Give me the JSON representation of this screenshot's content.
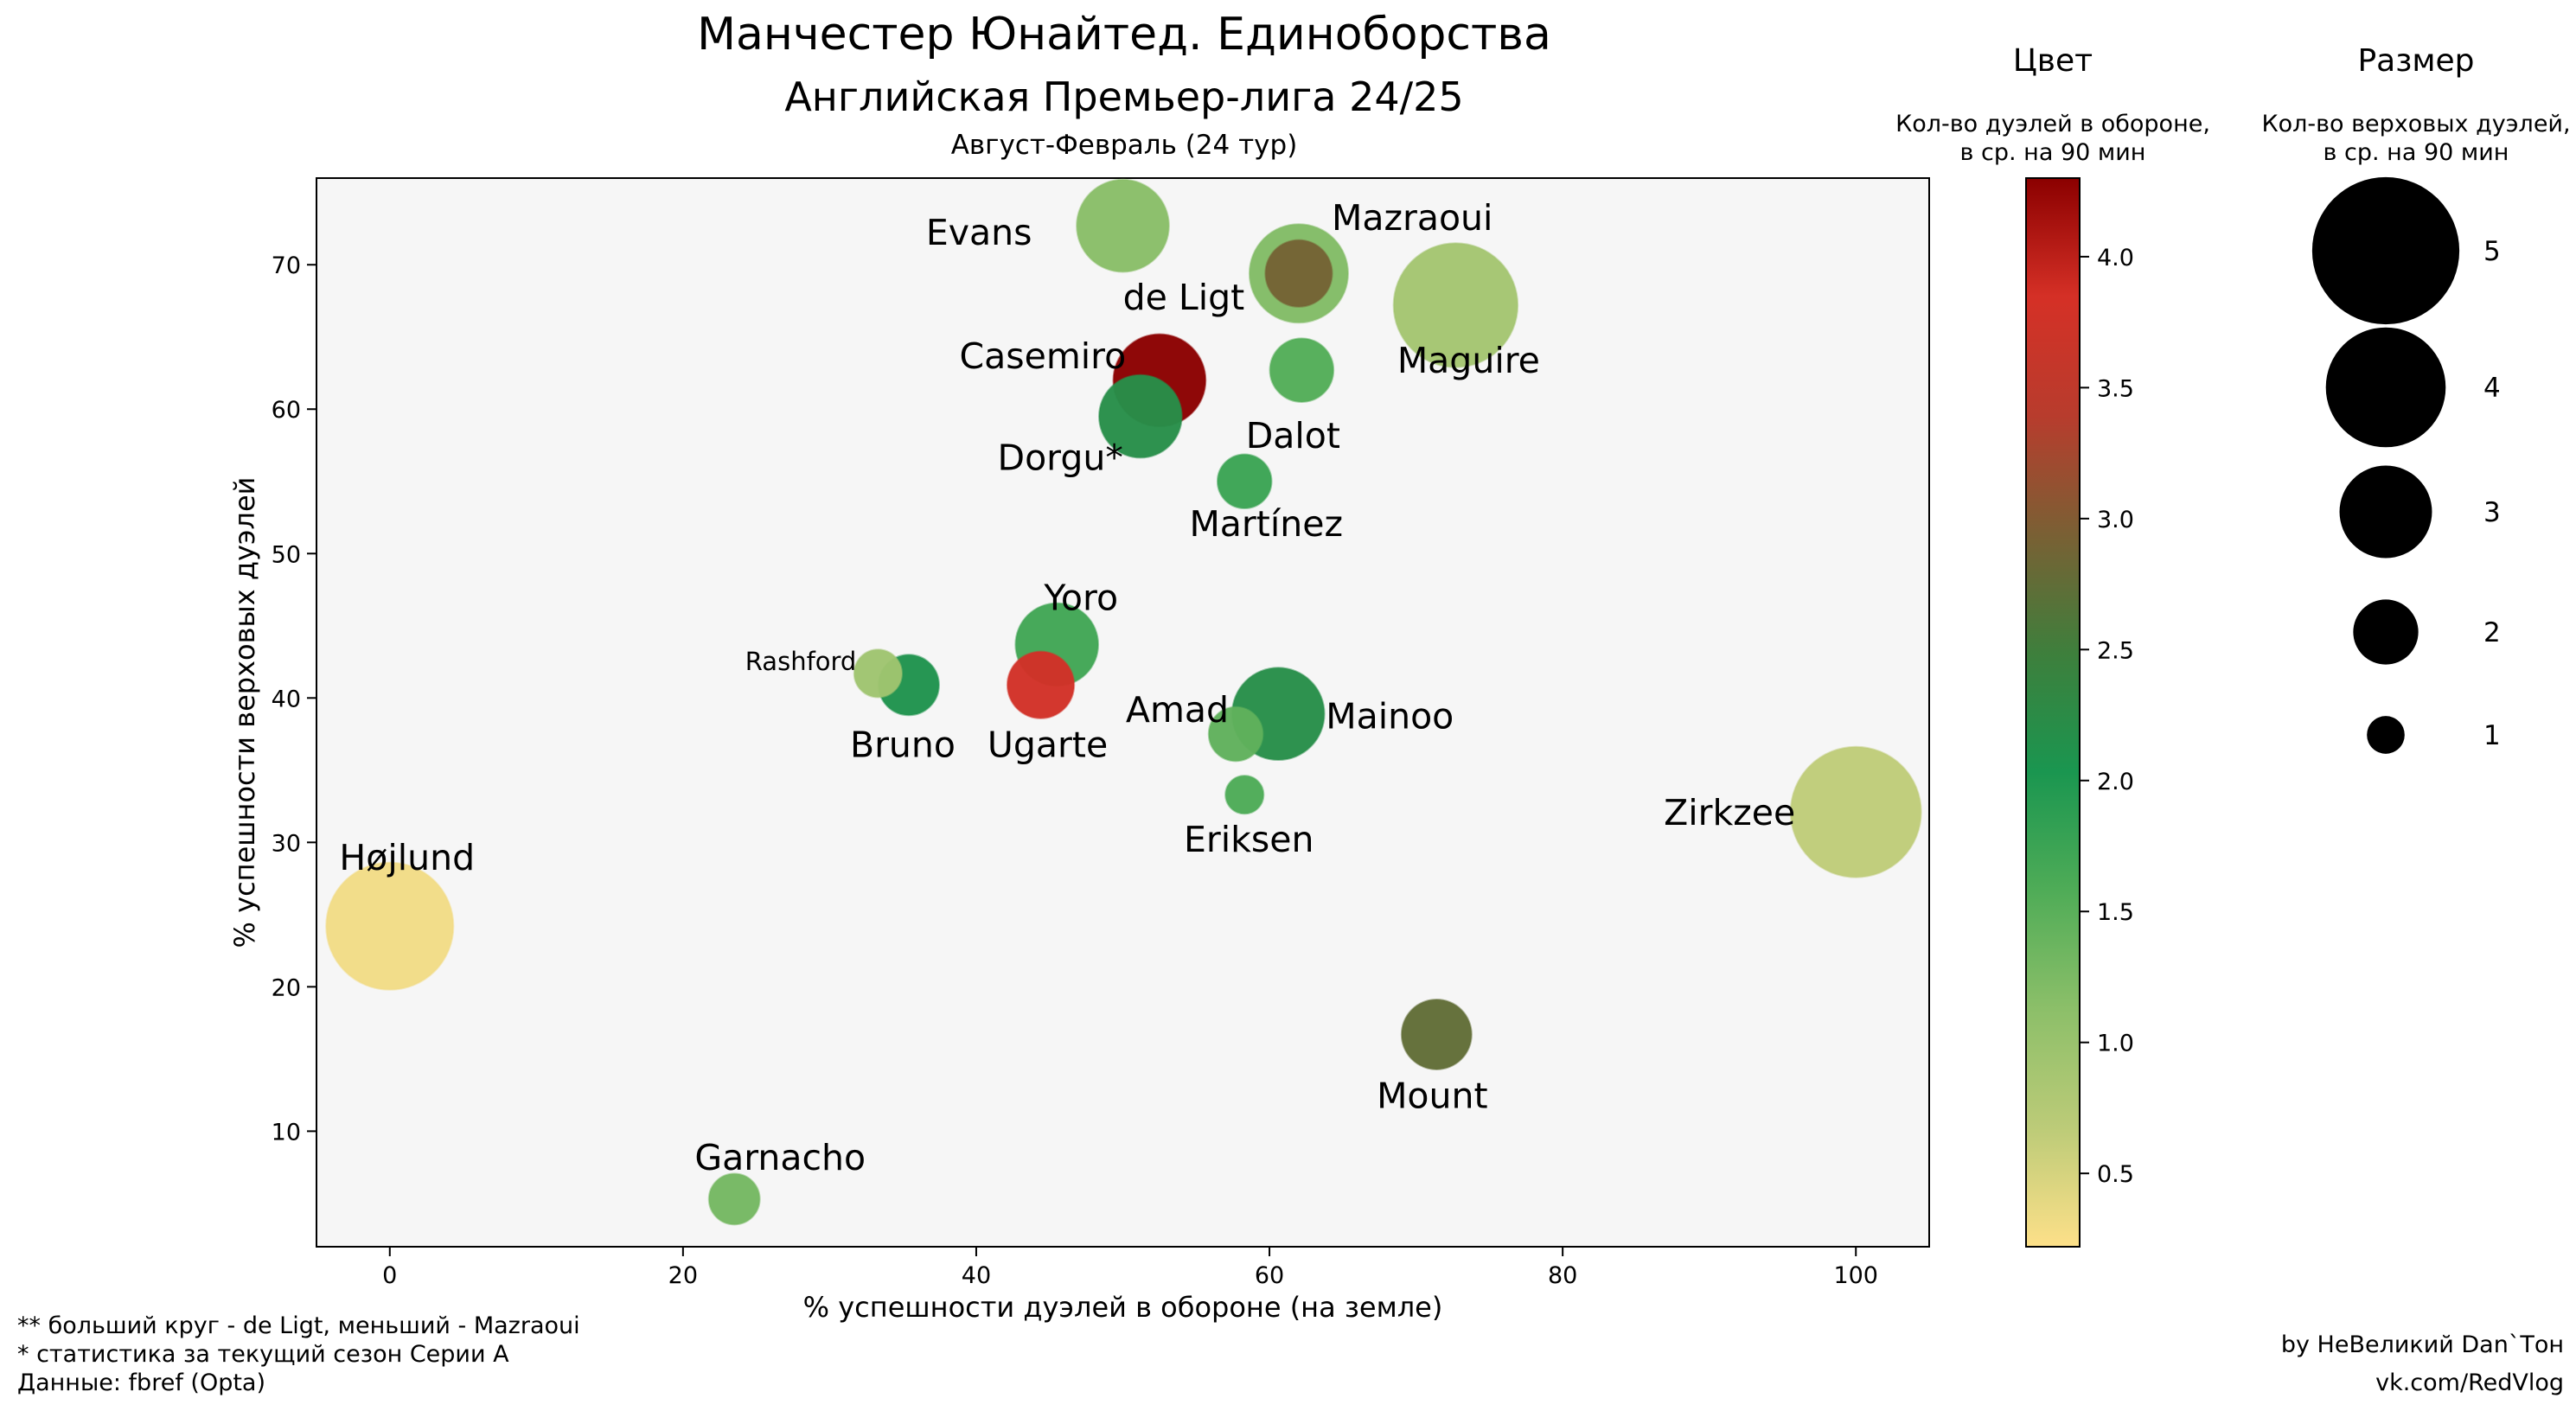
{
  "header": {
    "title": "Манчестер Юнайтед. Единоборства",
    "subtitle": "Английская Премьер-лига 24/25",
    "period": "Август-Февраль (24 тур)"
  },
  "chart_data": {
    "type": "scatter",
    "xlabel": "% успешности дуэлей в обороне (на земле)",
    "ylabel": "% успешности верховых дуэлей",
    "xlim": [
      -5,
      105
    ],
    "ylim": [
      2,
      76
    ],
    "x_ticks": [
      "0",
      "20",
      "40",
      "60",
      "80",
      "100"
    ],
    "y_ticks": [
      "10",
      "20",
      "30",
      "40",
      "50",
      "60",
      "70"
    ],
    "x_tick_values": [
      0,
      20,
      40,
      60,
      80,
      100
    ],
    "y_tick_values": [
      10,
      20,
      30,
      40,
      50,
      60,
      70
    ],
    "plot_background": "#f6f6f6",
    "grid": false,
    "points": [
      {
        "name": "Evans",
        "x": 50.0,
        "y": 72.7,
        "size": 2.9,
        "color_value": 1.15
      },
      {
        "name": "Maguire",
        "x": 72.7,
        "y": 67.2,
        "size": 3.9,
        "color_value": 0.9
      },
      {
        "name": "de Ligt",
        "x": 62.0,
        "y": 69.4,
        "size": 3.1,
        "color_value": 1.2
      },
      {
        "name": "Mazraoui",
        "x": 62.0,
        "y": 69.4,
        "size": 2.1,
        "color_value": 2.9
      },
      {
        "name": "Casemiro",
        "x": 52.5,
        "y": 62.0,
        "size": 2.9,
        "color_value": 4.3
      },
      {
        "name": "Dalot",
        "x": 62.2,
        "y": 62.7,
        "size": 2.0,
        "color_value": 1.55
      },
      {
        "name": "Dorgu*",
        "x": 51.2,
        "y": 59.5,
        "size": 2.6,
        "color_value": 2.2
      },
      {
        "name": "Martínez",
        "x": 58.3,
        "y": 55.0,
        "size": 1.7,
        "color_value": 1.75
      },
      {
        "name": "Yoro",
        "x": 45.5,
        "y": 43.7,
        "size": 2.6,
        "color_value": 1.7
      },
      {
        "name": "Rashford",
        "x": 33.3,
        "y": 41.7,
        "size": 1.5,
        "color_value": 0.95
      },
      {
        "name": "Bruno",
        "x": 35.4,
        "y": 40.9,
        "size": 1.9,
        "color_value": 2.1
      },
      {
        "name": "Ugarte",
        "x": 44.4,
        "y": 40.9,
        "size": 2.1,
        "color_value": 3.8
      },
      {
        "name": "Amad",
        "x": 57.7,
        "y": 37.5,
        "size": 1.7,
        "color_value": 1.45
      },
      {
        "name": "Mainoo",
        "x": 60.6,
        "y": 38.9,
        "size": 2.9,
        "color_value": 2.2
      },
      {
        "name": "Eriksen",
        "x": 58.3,
        "y": 33.3,
        "size": 1.2,
        "color_value": 1.6
      },
      {
        "name": "Zirkzee",
        "x": 100.0,
        "y": 32.1,
        "size": 4.1,
        "color_value": 0.65
      },
      {
        "name": "Højlund",
        "x": 0.0,
        "y": 24.2,
        "size": 4.0,
        "color_value": 0.3
      },
      {
        "name": "Mount",
        "x": 71.4,
        "y": 16.7,
        "size": 2.2,
        "color_value": 2.75
      },
      {
        "name": "Garnacho",
        "x": 23.5,
        "y": 5.3,
        "size": 1.6,
        "color_value": 1.3
      }
    ],
    "colorbar": {
      "heading": "Цвет",
      "label_line1": "Кол-во дуэлей в обороне,",
      "label_line2": "в ср. на 90 мин",
      "range": [
        0.22,
        4.3
      ],
      "ticks": [
        "0.5",
        "1.0",
        "1.5",
        "2.0",
        "2.5",
        "3.0",
        "3.5",
        "4.0"
      ],
      "tick_values": [
        0.5,
        1.0,
        1.5,
        2.0,
        2.5,
        3.0,
        3.5,
        4.0
      ],
      "stops": [
        "#fde089",
        "#bccb78",
        "#8cbf69",
        "#4fac57",
        "#1a9650",
        "#3e7f3c",
        "#7a6034",
        "#b83c2d",
        "#d53026",
        "#8b0000"
      ]
    },
    "size_legend": {
      "heading": "Размер",
      "label_line1": "Кол-во верховых дуэлей,",
      "label_line2": "в ср. на 90 мин",
      "entries": [
        {
          "value": 5,
          "label": "5"
        },
        {
          "value": 4,
          "label": "4"
        },
        {
          "value": 3,
          "label": "3"
        },
        {
          "value": 2,
          "label": "2"
        },
        {
          "value": 1,
          "label": "1"
        }
      ]
    }
  },
  "footer": {
    "note1": "** больший круг - de Ligt, меньший - Mazraoui",
    "note2": "* статистика за текущий сезон Серии А",
    "note3": "Данные: fbref (Opta)",
    "author": "by НеВеликий Dan`Тон",
    "link": "vk.com/RedVlog"
  }
}
